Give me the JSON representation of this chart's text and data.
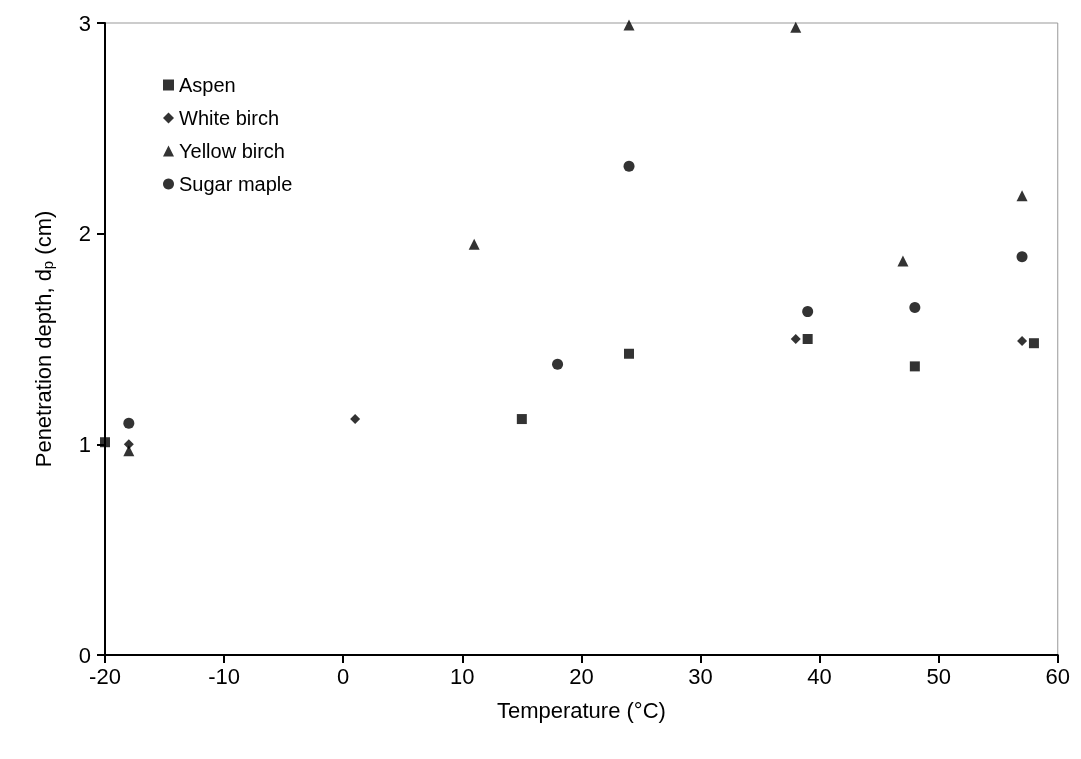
{
  "chart_data": {
    "type": "scatter",
    "xlabel": "Temperature (°C)",
    "ylabel": "Penetration depth, d$_{p}$ (cm)",
    "xlim": [
      -20,
      60
    ],
    "xticks": [
      -20,
      -10,
      0,
      10,
      20,
      30,
      40,
      50,
      60
    ],
    "ylim": [
      0,
      3
    ],
    "yticks": [
      0,
      1,
      2,
      3
    ],
    "grid": false,
    "legend": "top left",
    "series": [
      {
        "name": "Aspen",
        "color": "#000000",
        "marker": "square",
        "x": [
          -20,
          15,
          24,
          39,
          48,
          58
        ],
        "values": [
          1.01,
          1.12,
          1.43,
          1.5,
          1.37,
          1.48
        ]
      },
      {
        "name": "White birch",
        "color": "#000000",
        "marker": "diamond",
        "x": [
          -18,
          1,
          38,
          57
        ],
        "values": [
          1.0,
          1.12,
          1.5,
          1.49
        ]
      },
      {
        "name": "Yellow birch",
        "color": "#000000",
        "marker": "triangle",
        "x": [
          -18,
          11,
          24,
          38,
          47,
          57
        ],
        "values": [
          0.97,
          1.95,
          2.99,
          2.98,
          1.87,
          2.18
        ]
      },
      {
        "name": "Sugar maple",
        "color": "#000000",
        "marker": "circle",
        "x": [
          -18,
          18,
          24,
          39,
          48,
          57
        ],
        "values": [
          1.1,
          1.38,
          2.32,
          1.63,
          1.65,
          1.89
        ]
      }
    ]
  }
}
